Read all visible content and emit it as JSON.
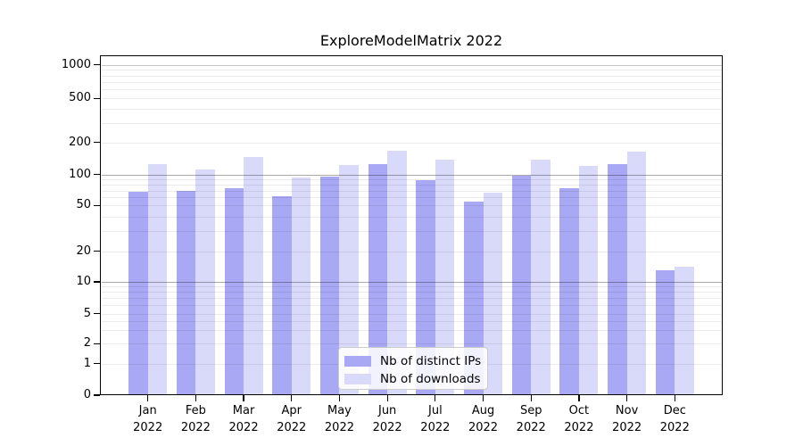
{
  "title": "ExploreModelMatrix 2022",
  "legend": {
    "items": [
      {
        "label": "Nb of distinct IPs",
        "color": "#a8a8f4"
      },
      {
        "label": "Nb of downloads",
        "color": "#d9d9fa"
      }
    ]
  },
  "chart_data": {
    "type": "bar",
    "title": "ExploreModelMatrix 2022",
    "categories": [
      "Jan 2022",
      "Feb 2022",
      "Mar 2022",
      "Apr 2022",
      "May 2022",
      "Jun 2022",
      "Jul 2022",
      "Aug 2022",
      "Sep 2022",
      "Oct 2022",
      "Nov 2022",
      "Dec 2022"
    ],
    "months": [
      "Jan",
      "Feb",
      "Mar",
      "Apr",
      "May",
      "Jun",
      "Jul",
      "Aug",
      "Sep",
      "Oct",
      "Nov",
      "Dec"
    ],
    "year": "2022",
    "series": [
      {
        "name": "Nb of distinct IPs",
        "color": "#a8a8f4",
        "values": [
          68,
          70,
          73,
          61,
          95,
          124,
          88,
          55,
          97,
          73,
          126,
          13
        ]
      },
      {
        "name": "Nb of downloads",
        "color": "#d9d9fa",
        "values": [
          124,
          112,
          145,
          93,
          123,
          166,
          138,
          67,
          138,
          120,
          163,
          14
        ]
      }
    ],
    "yscale": "symlog",
    "yticks": [
      0,
      1,
      2,
      5,
      10,
      20,
      50,
      100,
      200,
      500,
      1000
    ],
    "minor_gridlines": [
      3,
      4,
      6,
      7,
      8,
      9,
      30,
      40,
      60,
      70,
      80,
      90,
      300,
      400,
      600,
      700,
      800,
      900
    ],
    "ylim": [
      0,
      1220
    ],
    "grid": true,
    "legend_position": "lower-center-inside",
    "colors": {
      "bar_dark": "#a8a8f4",
      "bar_light": "#d9d9fa",
      "grid_major": "rgba(0,0,0,0.33)",
      "grid_minor": "rgba(0,0,0,0.08)",
      "axis": "#000000"
    }
  }
}
